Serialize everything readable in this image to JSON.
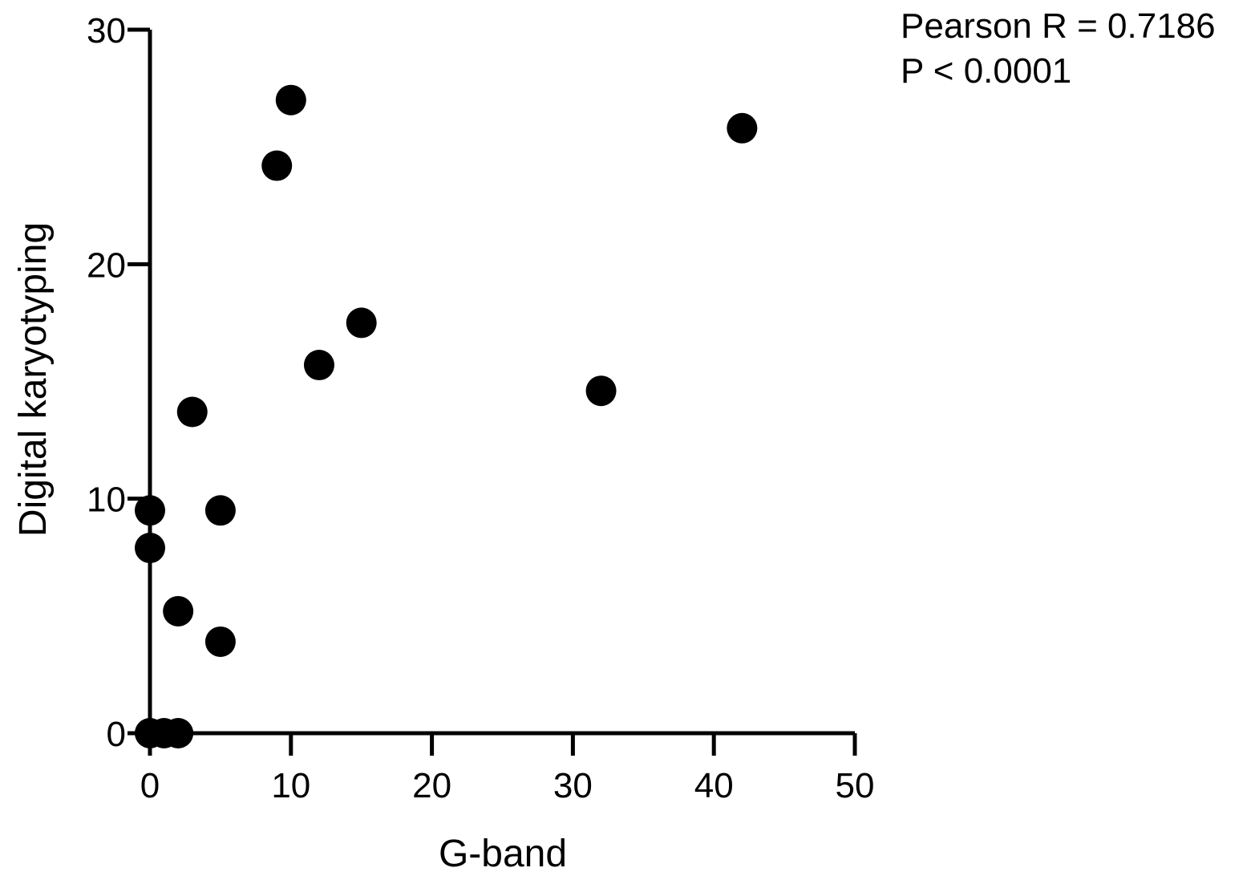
{
  "chart_data": {
    "type": "scatter",
    "xlabel": "G-band",
    "ylabel": "Digital karyotyping",
    "xlim": [
      0,
      50
    ],
    "ylim": [
      0,
      30
    ],
    "xticks": [
      0,
      10,
      20,
      30,
      40,
      50
    ],
    "yticks": [
      0,
      10,
      20,
      30
    ],
    "grid": false,
    "annotations": [
      "Pearson R = 0.7186",
      "P < 0.0001"
    ],
    "points": [
      {
        "x": 0,
        "y": 0
      },
      {
        "x": 1,
        "y": 0
      },
      {
        "x": 2,
        "y": 0
      },
      {
        "x": 0,
        "y": 7.9
      },
      {
        "x": 0,
        "y": 9.5
      },
      {
        "x": 2,
        "y": 5.2
      },
      {
        "x": 3,
        "y": 13.7
      },
      {
        "x": 5,
        "y": 9.5
      },
      {
        "x": 5,
        "y": 3.9
      },
      {
        "x": 9,
        "y": 24.2
      },
      {
        "x": 10,
        "y": 27.0
      },
      {
        "x": 12,
        "y": 15.7
      },
      {
        "x": 15,
        "y": 17.5
      },
      {
        "x": 32,
        "y": 14.6
      },
      {
        "x": 42,
        "y": 25.8
      }
    ],
    "marker_color": "#000000"
  }
}
